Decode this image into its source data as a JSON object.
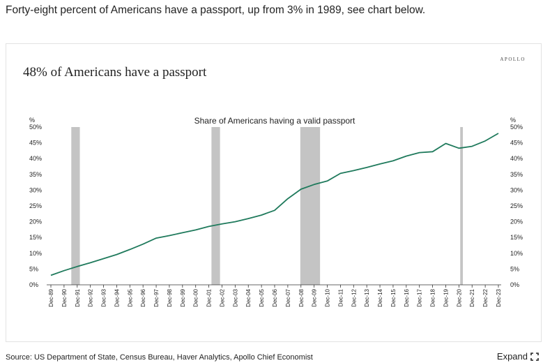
{
  "headline": "Forty-eight percent of Americans have a passport, up from 3% in 1989, see chart below.",
  "card": {
    "brand": "APOLLO",
    "title": "48% of  Americans have a passport"
  },
  "footer": {
    "source": "Source: US Department of State, Census Bureau, Haver Analytics, Apollo Chief Economist",
    "expand_label": "Expand",
    "expand_icon": "expand-icon"
  },
  "chart_data": {
    "type": "line",
    "title": "Share of Americans having a valid passport",
    "y_unit_left": "%",
    "y_unit_right": "%",
    "ylim": [
      0,
      50
    ],
    "yticks": [
      "0%",
      "5%",
      "10%",
      "15%",
      "20%",
      "25%",
      "30%",
      "35%",
      "40%",
      "45%",
      "50%"
    ],
    "xticks": [
      "Dec-89",
      "Dec-90",
      "Dec-91",
      "Dec-92",
      "Dec-93",
      "Dec-94",
      "Dec-95",
      "Dec-96",
      "Dec-97",
      "Dec-98",
      "Dec-99",
      "Dec-00",
      "Dec-01",
      "Dec-02",
      "Dec-03",
      "Dec-04",
      "Dec-05",
      "Dec-06",
      "Dec-07",
      "Dec-08",
      "Dec-09",
      "Dec-10",
      "Dec-11",
      "Dec-12",
      "Dec-13",
      "Dec-14",
      "Dec-15",
      "Dec-16",
      "Dec-17",
      "Dec-18",
      "Dec-19",
      "Dec-20",
      "Dec-21",
      "Dec-22",
      "Dec-23"
    ],
    "x_start_year": 1989,
    "recessions": [
      [
        1990.55,
        1991.2
      ],
      [
        2001.2,
        2001.85
      ],
      [
        2007.95,
        2009.45
      ],
      [
        2020.1,
        2020.3
      ]
    ],
    "series": [
      {
        "color": "#1f7a5c",
        "years": [
          1989,
          1990,
          1991,
          1992,
          1993,
          1994,
          1995,
          1996,
          1997,
          1998,
          1999,
          2000,
          2001,
          2002,
          2003,
          2004,
          2005,
          2006,
          2007,
          2008,
          2009,
          2010,
          2011,
          2012,
          2013,
          2014,
          2015,
          2016,
          2017,
          2018,
          2019,
          2020,
          2021,
          2022,
          2023
        ],
        "values": [
          3,
          4.5,
          5.8,
          7,
          8.3,
          9.6,
          11.2,
          12.9,
          14.8,
          15.6,
          16.5,
          17.4,
          18.5,
          19.3,
          20,
          21,
          22.1,
          23.6,
          27.3,
          30.3,
          31.8,
          32.9,
          35.3,
          36.2,
          37.2,
          38.3,
          39.3,
          40.8,
          41.9,
          42.2,
          44.8,
          43.3,
          43.9,
          45.6,
          48
        ]
      }
    ],
    "recession_color": "#c4c4c4",
    "grid": false
  }
}
